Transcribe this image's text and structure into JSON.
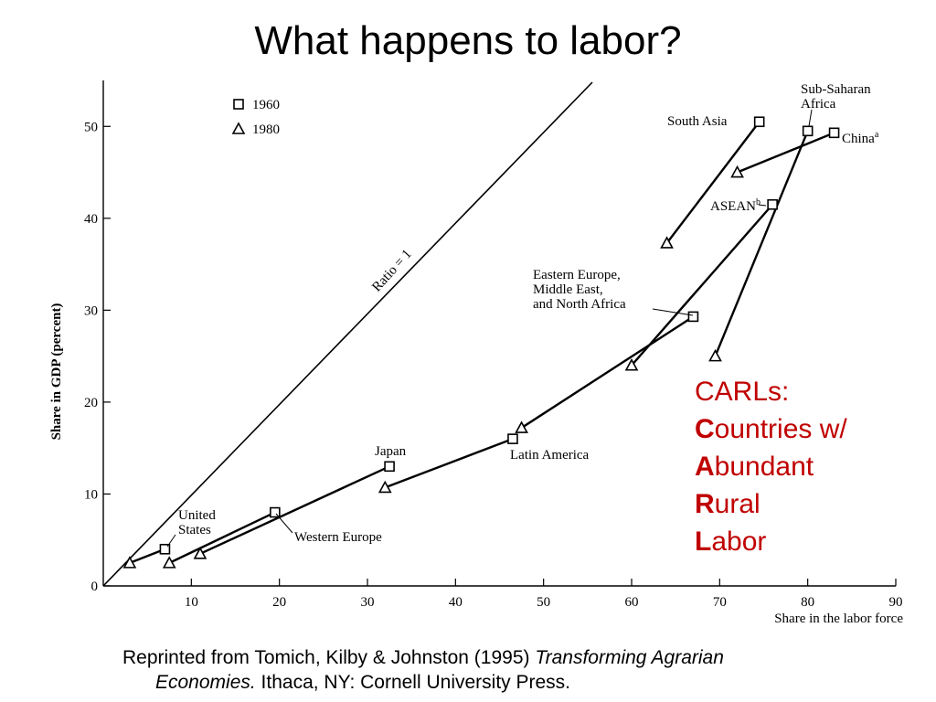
{
  "slide": {
    "title": "What happens to labor?"
  },
  "callout": {
    "heading": "CARLs:",
    "lines": [
      {
        "initial": "C",
        "rest": "ountries w/"
      },
      {
        "initial": "A",
        "rest": "bundant"
      },
      {
        "initial": "R",
        "rest": "ural"
      },
      {
        "initial": "L",
        "rest": "abor"
      }
    ],
    "color": "#c00000"
  },
  "citation": {
    "prefix": "Reprinted from Tomich, Kilby & Johnston (1995) ",
    "title_part1": "Transforming Agrarian",
    "title_part2": "Economies.",
    "suffix": " Ithaca, NY: Cornell University Press."
  },
  "chart_data": {
    "type": "scatter",
    "xlabel": "Share in the labor force",
    "ylabel": "Share in GDP (percent)",
    "xlim": [
      0,
      90
    ],
    "ylim": [
      0,
      55
    ],
    "xticks": [
      10,
      20,
      30,
      40,
      50,
      60,
      70,
      80,
      90
    ],
    "yticks": [
      0,
      10,
      20,
      30,
      40,
      50
    ],
    "legend": [
      {
        "marker": "square",
        "label": "1960"
      },
      {
        "marker": "triangle",
        "label": "1980"
      }
    ],
    "legend_position": "top-left",
    "reference_line": {
      "label": "Ratio = 1",
      "slope": 1
    },
    "series": [
      {
        "name": "United States",
        "label_lines": [
          "United",
          "States"
        ],
        "points": {
          "1960": [
            7,
            4
          ],
          "1980": [
            3,
            2.5
          ]
        }
      },
      {
        "name": "Western Europe",
        "label_lines": [
          "Western Europe"
        ],
        "points": {
          "1960": [
            19.5,
            8
          ],
          "1980": [
            7.5,
            2.5
          ]
        }
      },
      {
        "name": "Japan",
        "label_lines": [
          "Japan"
        ],
        "points": {
          "1960": [
            32.5,
            13
          ],
          "1980": [
            11,
            3.5
          ]
        }
      },
      {
        "name": "Latin America",
        "label_lines": [
          "Latin America"
        ],
        "points": {
          "1960": [
            46.5,
            16
          ],
          "1980": [
            32,
            10.7
          ]
        }
      },
      {
        "name": "Eastern Europe, Middle East, and North Africa",
        "label_lines": [
          "Eastern Europe,",
          "Middle East,",
          "and North Africa"
        ],
        "points": {
          "1960": [
            67,
            29.3
          ],
          "1980": [
            47.5,
            17.2
          ]
        }
      },
      {
        "name": "ASEAN",
        "label_lines": [
          "ASEAN"
        ],
        "superscript": "b",
        "points": {
          "1960": [
            76,
            41.5
          ],
          "1980": [
            60,
            24
          ]
        }
      },
      {
        "name": "South Asia",
        "label_lines": [
          "South Asia"
        ],
        "points": {
          "1960": [
            74.5,
            50.5
          ],
          "1980": [
            64,
            37.3
          ]
        }
      },
      {
        "name": "Sub-Saharan Africa",
        "label_lines": [
          "Sub-Saharan",
          "Africa"
        ],
        "points": {
          "1960": [
            80,
            49.5
          ],
          "1980": [
            69.5,
            25
          ]
        }
      },
      {
        "name": "China",
        "label_lines": [
          "China"
        ],
        "superscript": "a",
        "points": {
          "1960": [
            83,
            49.3
          ],
          "1980": [
            72,
            45
          ]
        }
      }
    ]
  }
}
